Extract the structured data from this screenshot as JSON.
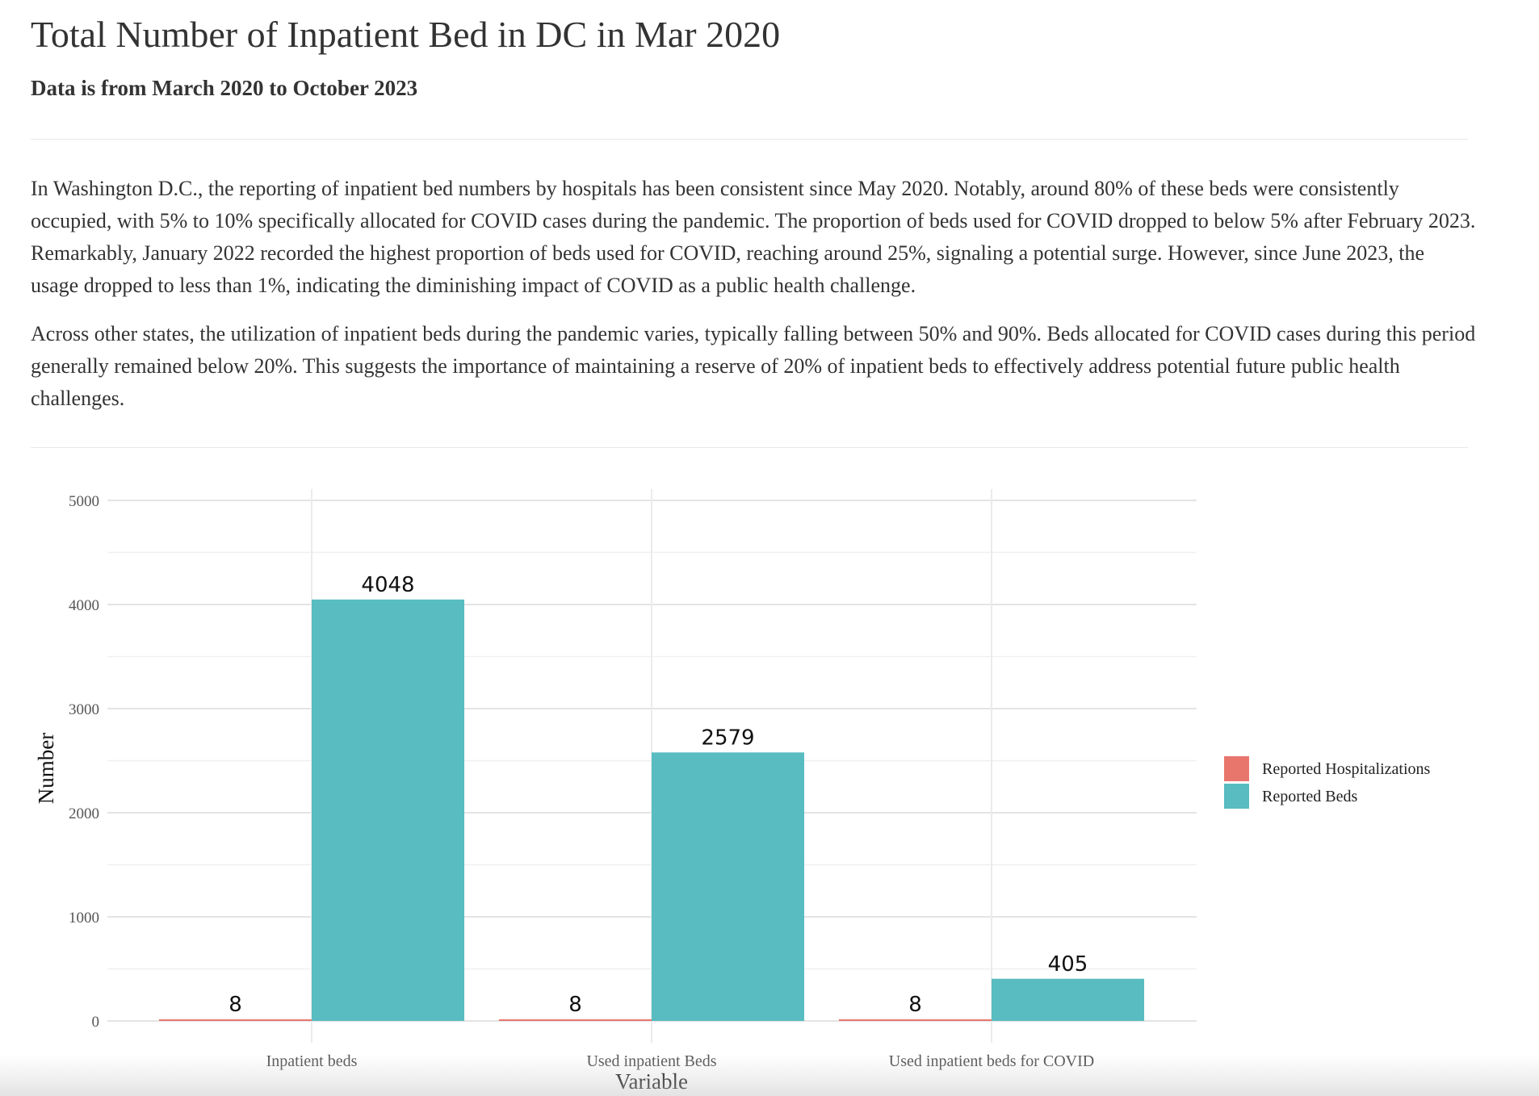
{
  "header": {
    "title": "Total Number of Inpatient Bed in DC in Mar 2020",
    "subtitle": "Data is from March 2020 to October 2023"
  },
  "description": {
    "paragraph_1": "In Washington D.C., the reporting of inpatient bed numbers by hospitals has been consistent since May 2020. Notably, around 80% of these beds were consistently occupied, with 5% to 10% specifically allocated for COVID cases during the pandemic. The proportion of beds used for COVID dropped to below 5% after February 2023. Remarkably, January 2022 recorded the highest proportion of beds used for COVID, reaching around 25%, signaling a potential surge. However, since June 2023, the usage dropped to less than 1%, indicating the diminishing impact of COVID as a public health challenge.",
    "paragraph_2": "Across other states, the utilization of inpatient beds during the pandemic varies, typically falling between 50% and 90%. Beds allocated for COVID cases during this period generally remained below 20%. This suggests the importance of maintaining a reserve of 20% of inpatient beds to effectively address potential future public health challenges."
  },
  "chart_data": {
    "type": "bar",
    "title": "",
    "xlabel": "Variable",
    "ylabel": "Number",
    "categories": [
      "Inpatient beds",
      "Used inpatient Beds",
      "Used inpatient beds for COVID"
    ],
    "series": [
      {
        "name": "Reported Hospitalizations",
        "color": "#E8766D",
        "values": [
          8,
          8,
          8
        ]
      },
      {
        "name": "Reported Beds",
        "color": "#58BCC1",
        "values": [
          4048,
          2579,
          405
        ]
      }
    ],
    "ylim": [
      0,
      5000
    ],
    "yticks": [
      0,
      1000,
      2000,
      3000,
      4000,
      5000
    ],
    "data_labels": true,
    "grid": true,
    "legend_position": "right"
  }
}
